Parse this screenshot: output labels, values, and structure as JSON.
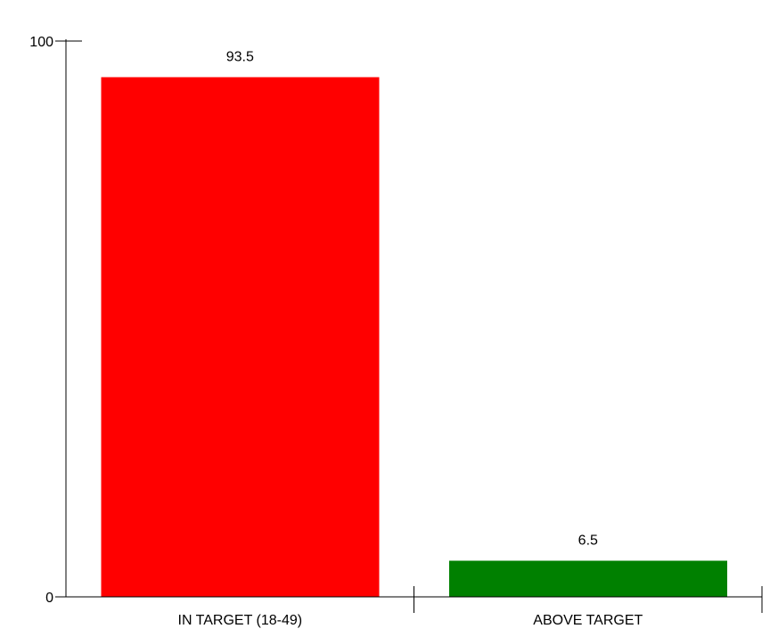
{
  "chart_data": {
    "type": "bar",
    "title": "",
    "xlabel": "",
    "ylabel": "",
    "categories": [
      "IN TARGET (18-49)",
      "ABOVE TARGET"
    ],
    "series": [
      {
        "values": [
          93.5,
          6.5
        ]
      }
    ],
    "data_labels": [
      "93.5",
      "6.5"
    ],
    "colors": [
      "#ff0000",
      "#008000"
    ],
    "ylim": [
      0,
      100
    ],
    "yticks": [
      0,
      100
    ],
    "ytick_labels": [
      "0",
      "100"
    ],
    "grid": false,
    "legend": "none"
  }
}
